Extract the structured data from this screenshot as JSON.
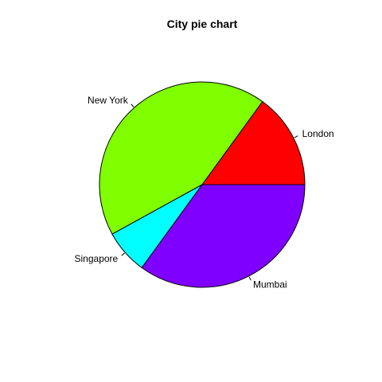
{
  "chart_data": {
    "type": "pie",
    "title": "City pie chart",
    "categories": [
      "London",
      "New York",
      "Singapore",
      "Mumbai"
    ],
    "values": [
      15,
      43,
      7,
      35
    ],
    "colors": [
      "#FF0000",
      "#80FF00",
      "#00FFFF",
      "#8000FF"
    ],
    "start_angle_deg": 0,
    "direction": "counterclockwise",
    "legend": "none",
    "labels_on_slices": true
  }
}
